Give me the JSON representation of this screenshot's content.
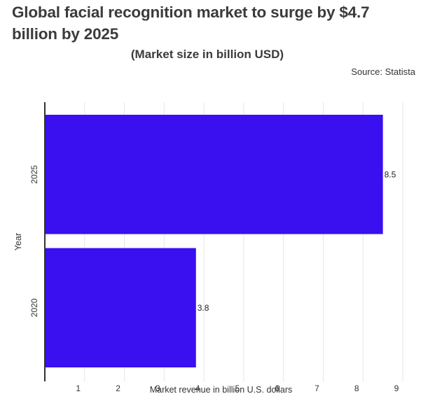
{
  "header": {
    "title": "Global facial recognition market to surge by $4.7 billion by 2025",
    "subtitle": "(Market size in billion USD)",
    "source": "Source: Statista"
  },
  "chart_data": {
    "type": "bar",
    "orientation": "horizontal",
    "categories": [
      "2025",
      "2020"
    ],
    "values": [
      8.5,
      3.8
    ],
    "value_labels": [
      "8.5",
      "3.8"
    ],
    "xlabel": "Market revenue in billion U.S. dollars",
    "ylabel": "Year",
    "xlim": [
      0,
      9
    ],
    "xticks": [
      "1",
      "2",
      "3",
      "4",
      "5",
      "6",
      "7",
      "8",
      "9"
    ],
    "grid": true,
    "bar_color": "#3a0ff0"
  }
}
